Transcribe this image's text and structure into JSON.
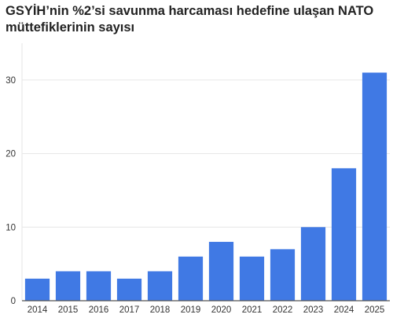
{
  "chart_data": {
    "type": "bar",
    "title": "GSYİH’nin %2’si savunma harcaması hedefine ulaşan NATO müttefiklerinin sayısı",
    "xlabel": "",
    "ylabel": "",
    "categories": [
      "2014",
      "2015",
      "2016",
      "2017",
      "2018",
      "2019",
      "2020",
      "2021",
      "2022",
      "2023",
      "2024",
      "2025"
    ],
    "values": [
      3,
      4,
      4,
      3,
      4,
      6,
      8,
      6,
      7,
      10,
      18,
      31
    ],
    "ylim": [
      0,
      35
    ],
    "yticks": [
      0,
      10,
      20,
      30
    ],
    "grid": true,
    "bar_color": "#4079e4",
    "grid_color": "#e6e6e6",
    "axis_color": "#555555"
  }
}
